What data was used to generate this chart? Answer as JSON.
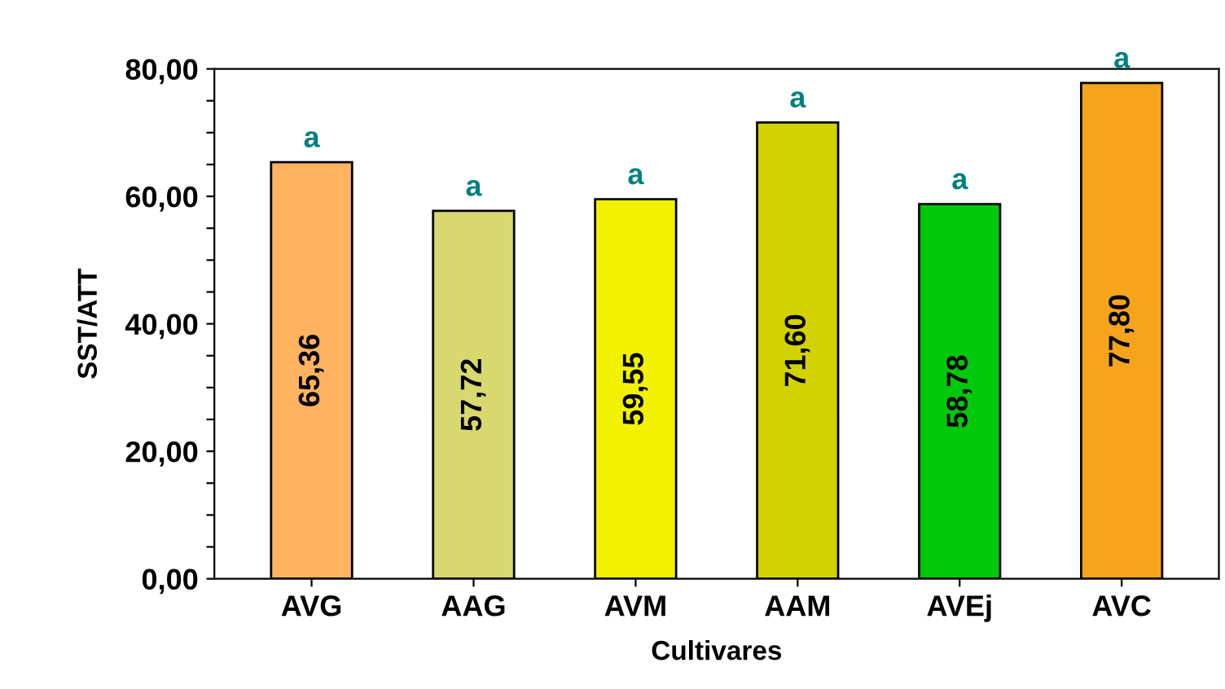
{
  "chart_data": {
    "type": "bar",
    "xlabel": "Cultivares",
    "ylabel": "SST/ATT",
    "categories": [
      "AVG",
      "AAG",
      "AVM",
      "AAM",
      "AVEj",
      "AVC"
    ],
    "values": [
      65.36,
      57.72,
      59.55,
      71.6,
      58.78,
      77.8
    ],
    "colors": [
      "#ffb35e",
      "#d9d86e",
      "#f2f200",
      "#d2d200",
      "#00c80a",
      "#f5a41b"
    ],
    "value_labels": [
      "65,36",
      "57,72",
      "59,55",
      "71,60",
      "58,78",
      "77,80"
    ],
    "annotations": [
      {
        "text": "a",
        "x": "AVG",
        "y": 65.36
      },
      {
        "text": "a",
        "x": "AAG",
        "y": 57.72
      },
      {
        "text": "a",
        "x": "AVM",
        "y": 59.55
      },
      {
        "text": "a",
        "x": "AAM",
        "y": 71.6
      },
      {
        "text": "a",
        "x": "AVEj",
        "y": 58.78
      },
      {
        "text": "a",
        "x": "AVC",
        "y": 77.8
      }
    ],
    "ylim": [
      0,
      80
    ],
    "yticks": [
      {
        "value": 0,
        "label": "0,00"
      },
      {
        "value": 5,
        "label": null
      },
      {
        "value": 10,
        "label": null
      },
      {
        "value": 15,
        "label": null
      },
      {
        "value": 20,
        "label": "20,00"
      },
      {
        "value": 25,
        "label": null
      },
      {
        "value": 30,
        "label": null
      },
      {
        "value": 35,
        "label": null
      },
      {
        "value": 40,
        "label": "40,00"
      },
      {
        "value": 45,
        "label": null
      },
      {
        "value": 50,
        "label": null
      },
      {
        "value": 55,
        "label": null
      },
      {
        "value": 60,
        "label": "60,00"
      },
      {
        "value": 65,
        "label": null
      },
      {
        "value": 70,
        "label": null
      },
      {
        "value": 75,
        "label": null
      },
      {
        "value": 80,
        "label": "80,00"
      }
    ],
    "grid": false,
    "legend": false
  }
}
